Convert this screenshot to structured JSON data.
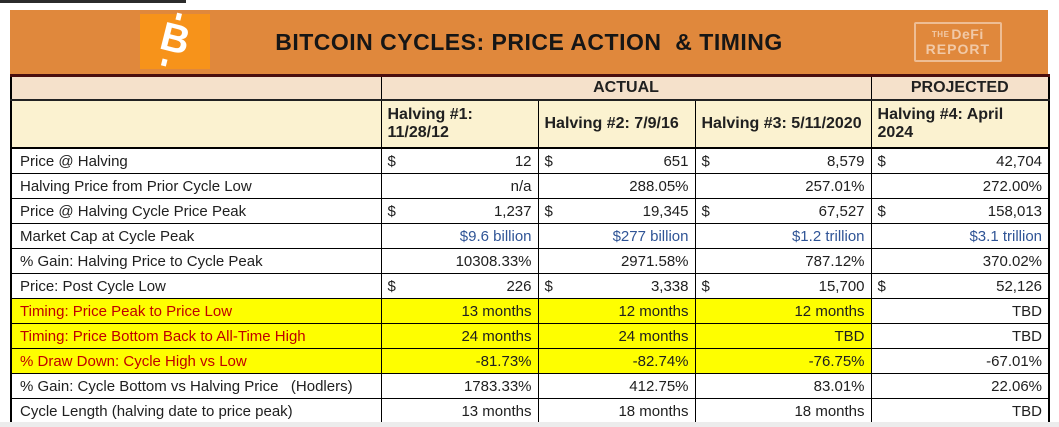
{
  "banner": {
    "logo_letter": "B",
    "brand": {
      "the": "THE",
      "defi": "DeFi",
      "report": "REPORT"
    }
  },
  "colors": {
    "banner_orange": "#E0883C",
    "logo_orange": "#F7931A",
    "group_header_bg": "#F5E1CB",
    "column_header_bg": "#FBF2D0",
    "highlight_yellow": "#FEFE00",
    "money_blue": "#2F5496",
    "highlight_label_red": "#C00000"
  },
  "chart_data": {
    "type": "table",
    "title": "BITCOIN CYCLES: PRICE ACTION  & TIMING",
    "group_headers": [
      "ACTUAL",
      "PROJECTED"
    ],
    "column_headers": [
      "Halving #1: 11/28/12",
      "Halving #2: 7/9/16",
      "Halving #3: 5/11/2020",
      "Halving #4: April 2024"
    ],
    "rows": [
      {
        "label": "Price @ Halving",
        "accounting": true,
        "cells": [
          "12",
          "651",
          "8,579",
          "42,704"
        ]
      },
      {
        "label": "Halving Price from Prior Cycle Low",
        "cells": [
          "n/a",
          "288.05%",
          "257.01%",
          "272.00%"
        ]
      },
      {
        "label": "Price @ Halving Cycle Price Peak",
        "accounting": true,
        "cells": [
          "1,237",
          "19,345",
          "67,527",
          "158,013"
        ]
      },
      {
        "label": "Market Cap at Cycle Peak",
        "blue": true,
        "cells": [
          "$9.6 billion",
          "$277 billion",
          "$1.2 trillion",
          "$3.1 trillion"
        ]
      },
      {
        "label": "% Gain: Halving Price to Cycle Peak",
        "cells": [
          "10308.33%",
          "2971.58%",
          "787.12%",
          "370.02%"
        ]
      },
      {
        "label": "Price: Post Cycle Low",
        "accounting": true,
        "cells": [
          "226",
          "3,338",
          "15,700",
          "52,126"
        ]
      },
      {
        "label": "Timing: Price Peak to Price Low",
        "highlight": true,
        "cells": [
          "13 months",
          "12 months",
          "12 months",
          "TBD"
        ]
      },
      {
        "label": "Timing: Price Bottom Back to All-Time High",
        "highlight": true,
        "cells": [
          "24 months",
          "24 months",
          "TBD",
          "TBD"
        ]
      },
      {
        "label": "% Draw Down: Cycle High vs Low",
        "highlight": true,
        "cells": [
          "-81.73%",
          "-82.74%",
          "-76.75%",
          "-67.01%"
        ]
      },
      {
        "label": "% Gain: Cycle Bottom vs Halving Price   (Hodlers)",
        "cells": [
          "1783.33%",
          "412.75%",
          "83.01%",
          "22.06%"
        ]
      },
      {
        "label": "Cycle Length (halving date to price peak)",
        "cells": [
          "13 months",
          "18 months",
          "18 months",
          "TBD"
        ]
      }
    ]
  }
}
